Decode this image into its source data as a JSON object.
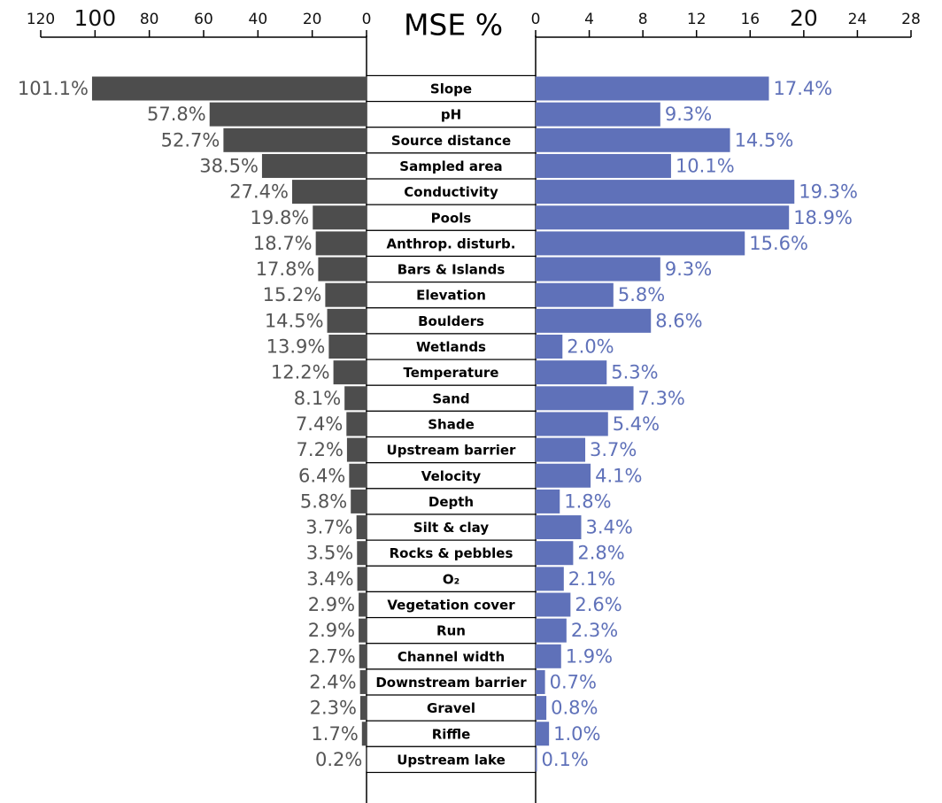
{
  "chart_data": [
    {
      "type": "bar",
      "title": "MSE %",
      "orientation": "horizontal",
      "direction": "reversed",
      "color": "#4d4d4d",
      "categories": [
        "Slope",
        "pH",
        "Source distance",
        "Sampled area",
        "Conductivity",
        "Pools",
        "Anthrop. disturb.",
        "Bars & Islands",
        "Elevation",
        "Boulders",
        "Wetlands",
        "Temperature",
        "Sand",
        "Shade",
        "Upstream barrier",
        "Velocity",
        "Depth",
        "Silt & clay",
        "Rocks & pebbles",
        "O₂",
        "Vegetation cover",
        "Run",
        "Channel width",
        "Downstream barrier",
        "Gravel",
        "Riffle",
        "Upstream lake"
      ],
      "values": [
        101.1,
        57.8,
        52.7,
        38.5,
        27.4,
        19.8,
        18.7,
        17.8,
        15.2,
        14.5,
        13.9,
        12.2,
        8.1,
        7.4,
        7.2,
        6.4,
        5.8,
        3.7,
        3.5,
        3.4,
        2.9,
        2.9,
        2.7,
        2.4,
        2.3,
        1.7,
        0.2
      ],
      "value_labels": [
        "101.1%",
        "57.8%",
        "52.7%",
        "38.5%",
        "27.4%",
        "19.8%",
        "18.7%",
        "17.8%",
        "15.2%",
        "14.5%",
        "13.9%",
        "12.2%",
        "8.1%",
        "7.4%",
        "7.2%",
        "6.4%",
        "5.8%",
        "3.7%",
        "3.5%",
        "3.4%",
        "2.9%",
        "2.9%",
        "2.7%",
        "2.4%",
        "2.3%",
        "1.7%",
        "0.2%"
      ],
      "xlim": [
        0,
        120
      ],
      "xticks": [
        120,
        100,
        80,
        60,
        40,
        20,
        0
      ]
    },
    {
      "type": "bar",
      "orientation": "horizontal",
      "color": "#5f71b9",
      "values": [
        17.4,
        9.3,
        14.5,
        10.1,
        19.3,
        18.9,
        15.6,
        9.3,
        5.8,
        8.6,
        2.0,
        5.3,
        7.3,
        5.4,
        3.7,
        4.1,
        1.8,
        3.4,
        2.8,
        2.1,
        2.6,
        2.3,
        1.9,
        0.7,
        0.8,
        1.0,
        0.1
      ],
      "value_labels": [
        "17.4%",
        "9.3%",
        "14.5%",
        "10.1%",
        "19.3%",
        "18.9%",
        "15.6%",
        "9.3%",
        "5.8%",
        "8.6%",
        "2.0%",
        "5.3%",
        "7.3%",
        "5.4%",
        "3.7%",
        "4.1%",
        "1.8%",
        "3.4%",
        "2.8%",
        "2.1%",
        "2.6%",
        "2.3%",
        "1.9%",
        "0.7%",
        "0.8%",
        "1.0%",
        "0.1%"
      ],
      "xlim": [
        0,
        28
      ],
      "xticks": [
        0,
        4,
        8,
        12,
        16,
        20,
        24,
        28
      ]
    }
  ]
}
